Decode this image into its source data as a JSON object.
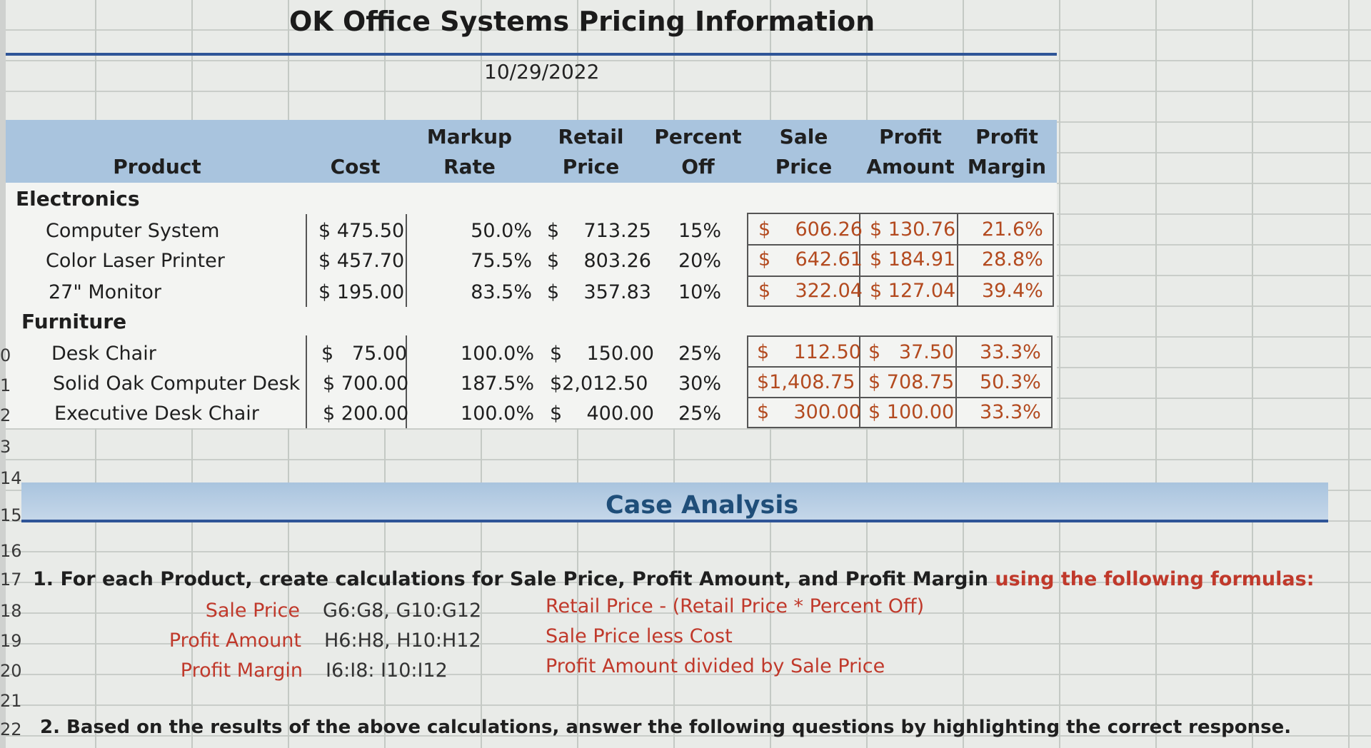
{
  "title": "OK Office Systems Pricing Information",
  "date": "10/29/2022",
  "headers": {
    "product": "Product",
    "cost": "Cost",
    "markup": [
      "Markup",
      "Rate"
    ],
    "retail": [
      "Retail",
      "Price"
    ],
    "percent": [
      "Percent",
      "Off"
    ],
    "sale": [
      "Sale",
      "Price"
    ],
    "profit_amount": [
      "Profit",
      "Amount"
    ],
    "profit_margin": [
      "Profit",
      "Margin"
    ]
  },
  "categories": {
    "electronics": "Electronics",
    "furniture": "Furniture"
  },
  "rows": [
    {
      "product": "Computer System",
      "cost": "$ 475.50",
      "markup": "50.0%",
      "retail": "$    713.25",
      "percent": "15%",
      "sale": "$    606.26",
      "profit": "$ 130.76",
      "margin": "21.6%"
    },
    {
      "product": "Color Laser Printer",
      "cost": "$ 457.70",
      "markup": "75.5%",
      "retail": "$    803.26",
      "percent": "20%",
      "sale": "$    642.61",
      "profit": "$ 184.91",
      "margin": "28.8%"
    },
    {
      "product": "27\" Monitor",
      "cost": "$ 195.00",
      "markup": "83.5%",
      "retail": "$    357.83",
      "percent": "10%",
      "sale": "$    322.04",
      "profit": "$ 127.04",
      "margin": "39.4%"
    },
    {
      "product": "Desk Chair",
      "cost": "$   75.00",
      "markup": "100.0%",
      "retail": "$    150.00",
      "percent": "25%",
      "sale": "$    112.50",
      "profit": "$   37.50",
      "margin": "33.3%"
    },
    {
      "product": "Solid Oak Computer Desk",
      "cost": "$ 700.00",
      "markup": "187.5%",
      "retail": "$2,012.50",
      "percent": "30%",
      "sale": "$1,408.75",
      "profit": "$ 708.75",
      "margin": "50.3%"
    },
    {
      "product": "Executive Desk Chair",
      "cost": "$ 200.00",
      "markup": "100.0%",
      "retail": "$    400.00",
      "percent": "25%",
      "sale": "$    300.00",
      "profit": "$ 100.00",
      "margin": "33.3%"
    }
  ],
  "row_numbers": [
    "0",
    "1",
    "2",
    "3",
    "14",
    "15",
    "16",
    "17",
    "18",
    "19",
    "20",
    "21",
    "22"
  ],
  "case": {
    "title": "Case Analysis",
    "q1_black": "1. For each Product, create calculations for Sale Price, Profit Amount, and Profit Margin",
    "q1_red": "using the following formulas:",
    "formulas": [
      {
        "label": "Sale Price",
        "range": "G6:G8, G10:G12",
        "desc": "Retail Price - (Retail Price * Percent Off)"
      },
      {
        "label": "Profit Amount",
        "range": "H6:H8, H10:H12",
        "desc": "Sale Price less Cost"
      },
      {
        "label": "Profit Margin",
        "range": "I6:I8: I10:I12",
        "desc": "Profit Amount divided by Sale Price"
      }
    ],
    "q2": "2. Based on the results of the above calculations, answer the following questions by highlighting the correct response."
  }
}
